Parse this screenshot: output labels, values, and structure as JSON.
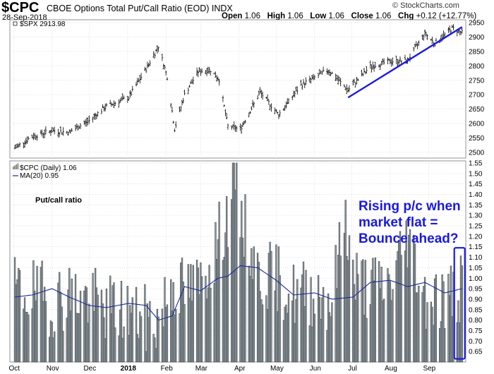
{
  "header": {
    "symbol": "$CPC",
    "title": "CBOE Options Total Put/Call Ratio (EOD)",
    "exchange": "INDX",
    "date": "28-Sep-2018",
    "brand": "© StockCharts.com",
    "open_label": "Open",
    "open": "1.06",
    "high_label": "High",
    "high": "1.06",
    "low_label": "Low",
    "low": "1.06",
    "close_label": "Close",
    "close": "1.06",
    "chg_label": "Chg",
    "chg": "+0.12 (+12.77%)"
  },
  "chart_data": [
    {
      "type": "line",
      "legend": "$SPX 2913.98",
      "legend_placement": "top-left",
      "ylim": [
        2480,
        2960
      ],
      "yticks": [
        2500,
        2550,
        2600,
        2650,
        2700,
        2750,
        2800,
        2850,
        2900,
        2950
      ],
      "grid": true,
      "series": [
        {
          "name": "$SPX",
          "color": "#000000",
          "points": [
            [
              "2017-10-02",
              2515
            ],
            [
              "2017-10-16",
              2555
            ],
            [
              "2017-11-01",
              2575
            ],
            [
              "2017-11-15",
              2570
            ],
            [
              "2017-12-01",
              2610
            ],
            [
              "2017-12-15",
              2660
            ],
            [
              "2018-01-02",
              2690
            ],
            [
              "2018-01-16",
              2790
            ],
            [
              "2018-01-26",
              2868
            ],
            [
              "2018-02-02",
              2762
            ],
            [
              "2018-02-08",
              2581
            ],
            [
              "2018-02-16",
              2700
            ],
            [
              "2018-02-27",
              2780
            ],
            [
              "2018-03-09",
              2786
            ],
            [
              "2018-03-16",
              2752
            ],
            [
              "2018-03-23",
              2590
            ],
            [
              "2018-04-02",
              2581
            ],
            [
              "2018-04-18",
              2708
            ],
            [
              "2018-05-03",
              2630
            ],
            [
              "2018-05-21",
              2733
            ],
            [
              "2018-06-12",
              2786
            ],
            [
              "2018-06-28",
              2716
            ],
            [
              "2018-07-16",
              2798
            ],
            [
              "2018-08-01",
              2816
            ],
            [
              "2018-08-15",
              2818
            ],
            [
              "2018-08-29",
              2914
            ],
            [
              "2018-09-06",
              2878
            ],
            [
              "2018-09-20",
              2931
            ],
            [
              "2018-09-28",
              2914
            ]
          ]
        }
      ],
      "trendline": {
        "color": "#1a1adf",
        "from": [
          "2018-06-28",
          2690
        ],
        "to": [
          "2018-09-28",
          2935
        ]
      }
    },
    {
      "type": "bar",
      "legend_cpc": "$CPC (Daily) 1.06",
      "legend_ma": "MA(20) 0.95",
      "legend_placement": "top-left",
      "ylim": [
        0.6,
        1.56
      ],
      "yticks": [
        0.65,
        0.7,
        0.75,
        0.8,
        0.85,
        0.9,
        0.95,
        1.0,
        1.05,
        1.1,
        1.15,
        1.2,
        1.25,
        1.3,
        1.35,
        1.4,
        1.45,
        1.5,
        1.55
      ],
      "x_range": [
        "2017-09-28",
        "2018-10-01"
      ],
      "x_ticks": [
        {
          "date": "2017-10-01",
          "label": "Oct"
        },
        {
          "date": "2017-11-01",
          "label": "Nov"
        },
        {
          "date": "2017-12-01",
          "label": "Dec"
        },
        {
          "date": "2018-01-01",
          "label": "2018"
        },
        {
          "date": "2018-02-01",
          "label": "Feb"
        },
        {
          "date": "2018-03-01",
          "label": "Mar"
        },
        {
          "date": "2018-04-01",
          "label": "Apr"
        },
        {
          "date": "2018-05-01",
          "label": "May"
        },
        {
          "date": "2018-06-01",
          "label": "Jun"
        },
        {
          "date": "2018-07-01",
          "label": "Jul"
        },
        {
          "date": "2018-08-01",
          "label": "Aug"
        },
        {
          "date": "2018-09-01",
          "label": "Sep"
        }
      ],
      "series": [
        {
          "name": "$CPC",
          "color": "#8f9ca5",
          "points": [
            [
              "2017-10-02",
              0.94
            ],
            [
              "2017-10-23",
              0.92
            ],
            [
              "2017-11-01",
              0.88
            ],
            [
              "2017-11-15",
              0.93
            ],
            [
              "2017-12-01",
              0.9
            ],
            [
              "2017-12-15",
              0.86
            ],
            [
              "2018-01-02",
              0.84
            ],
            [
              "2018-01-16",
              0.8
            ],
            [
              "2018-01-26",
              0.8
            ],
            [
              "2018-02-05",
              0.98
            ],
            [
              "2018-02-16",
              0.94
            ],
            [
              "2018-03-01",
              0.97
            ],
            [
              "2018-03-23",
              1.3
            ],
            [
              "2018-03-28",
              1.54
            ],
            [
              "2018-04-02",
              1.32
            ],
            [
              "2018-04-16",
              1.02
            ],
            [
              "2018-05-01",
              1.0
            ],
            [
              "2018-05-15",
              0.92
            ],
            [
              "2018-06-01",
              0.94
            ],
            [
              "2018-06-15",
              0.9
            ],
            [
              "2018-06-26",
              1.31
            ],
            [
              "2018-07-02",
              1.0
            ],
            [
              "2018-07-16",
              0.96
            ],
            [
              "2018-08-01",
              0.97
            ],
            [
              "2018-08-15",
              1.21
            ],
            [
              "2018-08-29",
              0.92
            ],
            [
              "2018-09-14",
              0.9
            ],
            [
              "2018-09-27",
              0.94
            ],
            [
              "2018-09-28",
              1.06
            ]
          ]
        },
        {
          "name": "MA(20)",
          "color": "#1a2a99",
          "points": [
            [
              "2017-10-02",
              0.91
            ],
            [
              "2017-10-16",
              0.92
            ],
            [
              "2017-11-01",
              0.95
            ],
            [
              "2017-11-15",
              0.91
            ],
            [
              "2017-12-01",
              0.87
            ],
            [
              "2017-12-15",
              0.86
            ],
            [
              "2018-01-02",
              0.88
            ],
            [
              "2018-01-16",
              0.87
            ],
            [
              "2018-01-26",
              0.8
            ],
            [
              "2018-02-06",
              0.82
            ],
            [
              "2018-02-16",
              0.96
            ],
            [
              "2018-03-01",
              0.94
            ],
            [
              "2018-03-15",
              1.0
            ],
            [
              "2018-03-23",
              1.01
            ],
            [
              "2018-04-02",
              1.06
            ],
            [
              "2018-04-16",
              1.05
            ],
            [
              "2018-05-01",
              0.99
            ],
            [
              "2018-05-15",
              0.92
            ],
            [
              "2018-06-01",
              0.93
            ],
            [
              "2018-06-15",
              0.9
            ],
            [
              "2018-07-02",
              0.91
            ],
            [
              "2018-07-16",
              0.98
            ],
            [
              "2018-08-01",
              0.99
            ],
            [
              "2018-08-15",
              0.96
            ],
            [
              "2018-08-29",
              0.98
            ],
            [
              "2018-09-14",
              0.93
            ],
            [
              "2018-09-28",
              0.95
            ]
          ]
        }
      ],
      "annotations": [
        {
          "text": "Put/call ratio",
          "color": "#000000"
        },
        {
          "text": "Rising p/c when market flat = Bounce ahead?",
          "lines": [
            "Rising p/c when",
            "market flat =",
            "Bounce ahead?"
          ],
          "color": "#1a1adf"
        }
      ],
      "highlight_box": {
        "color": "#1a1adf",
        "from": "2018-09-24",
        "to": "2018-09-28"
      }
    }
  ]
}
